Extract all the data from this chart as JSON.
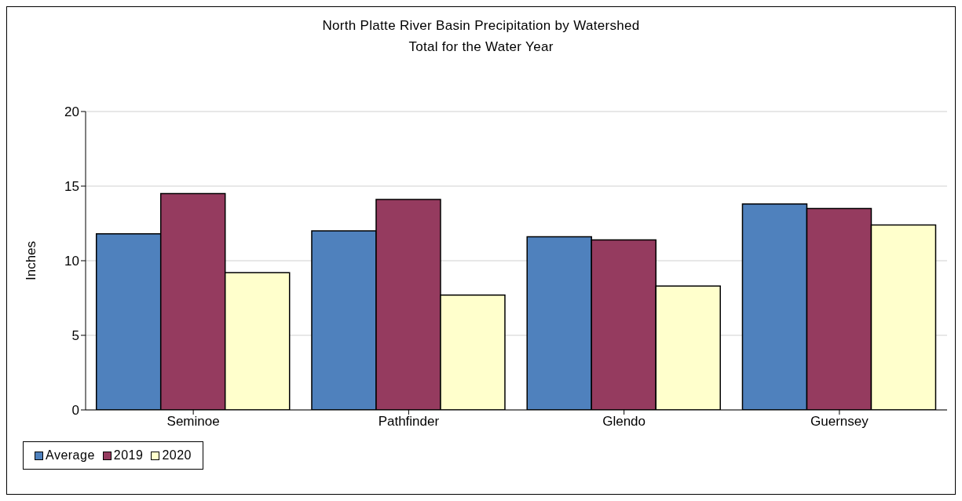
{
  "chart_data": {
    "type": "bar",
    "title": "North Platte River Basin Precipitation by Watershed\nTotal for the Water Year",
    "ylabel": "Inches",
    "categories": [
      "Seminoe",
      "Pathfinder",
      "Glendo",
      "Guernsey"
    ],
    "series": [
      {
        "name": "Average",
        "color": "#4f81bd",
        "values": [
          11.8,
          12.0,
          11.6,
          13.8
        ]
      },
      {
        "name": "2019",
        "color": "#953b5f",
        "values": [
          14.5,
          14.1,
          11.4,
          13.5
        ]
      },
      {
        "name": "2020",
        "color": "#ffffcc",
        "values": [
          9.2,
          7.7,
          8.3,
          12.4
        ]
      }
    ],
    "ylim": [
      0,
      20
    ],
    "yticks": [
      0,
      5,
      10,
      15,
      20
    ],
    "grid": "y",
    "legend": "bottom"
  }
}
